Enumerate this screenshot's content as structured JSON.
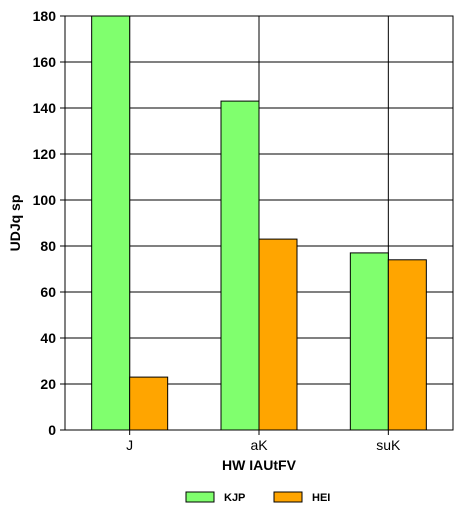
{
  "chart_data": {
    "type": "bar",
    "categories": [
      "J",
      "aK",
      "suK"
    ],
    "series": [
      {
        "name": "KJP",
        "values": [
          180,
          143,
          77
        ],
        "color": "#80ff6e"
      },
      {
        "name": "HEI",
        "values": [
          23,
          83,
          74
        ],
        "color": "#ffa500"
      }
    ],
    "xlabel": "HW IAUtFV",
    "ylabel": "UDJq sp",
    "ylim": [
      0,
      180
    ],
    "yticks": [
      0,
      20,
      40,
      60,
      80,
      100,
      120,
      140,
      160,
      180
    ],
    "grid": true,
    "legend_position": "bottom"
  }
}
